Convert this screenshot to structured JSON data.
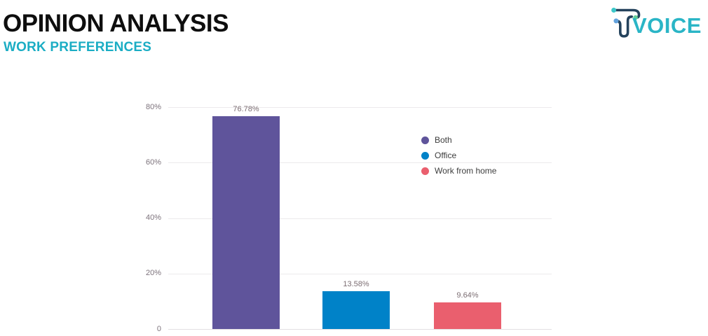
{
  "header": {
    "title": "OPINION ANALYSIS",
    "subtitle": "WORK PREFERENCES"
  },
  "logo": {
    "text": "VOICE",
    "text_color": "#2ab5c6",
    "icon_stroke_color": "#24425c",
    "icon_dot_colors": {
      "teal": "#3cc7c9",
      "green": "#63cd97",
      "blue": "#63a2dd"
    }
  },
  "chart_data": {
    "type": "bar",
    "title": "",
    "xlabel": "",
    "ylabel": "",
    "categories": [
      "Both",
      "Office",
      "Work from home"
    ],
    "values": [
      76.78,
      13.58,
      9.64
    ],
    "value_labels": [
      "76.78%",
      "13.58%",
      "9.64%"
    ],
    "bar_colors": [
      "#5f549b",
      "#0082c8",
      "#ea5f6e"
    ],
    "ylim": [
      0,
      80
    ],
    "yticks": [
      {
        "value": 80,
        "label": "80%"
      },
      {
        "value": 60,
        "label": "60%"
      },
      {
        "value": 40,
        "label": "40%"
      },
      {
        "value": 20,
        "label": "20%"
      },
      {
        "value": 0,
        "label": "0"
      }
    ],
    "grid": true,
    "legend": {
      "position": "inside-right",
      "entries": [
        {
          "label": "Both",
          "color": "#5f549b"
        },
        {
          "label": "Office",
          "color": "#0082c8"
        },
        {
          "label": "Work from home",
          "color": "#ea5f6e"
        }
      ]
    }
  }
}
